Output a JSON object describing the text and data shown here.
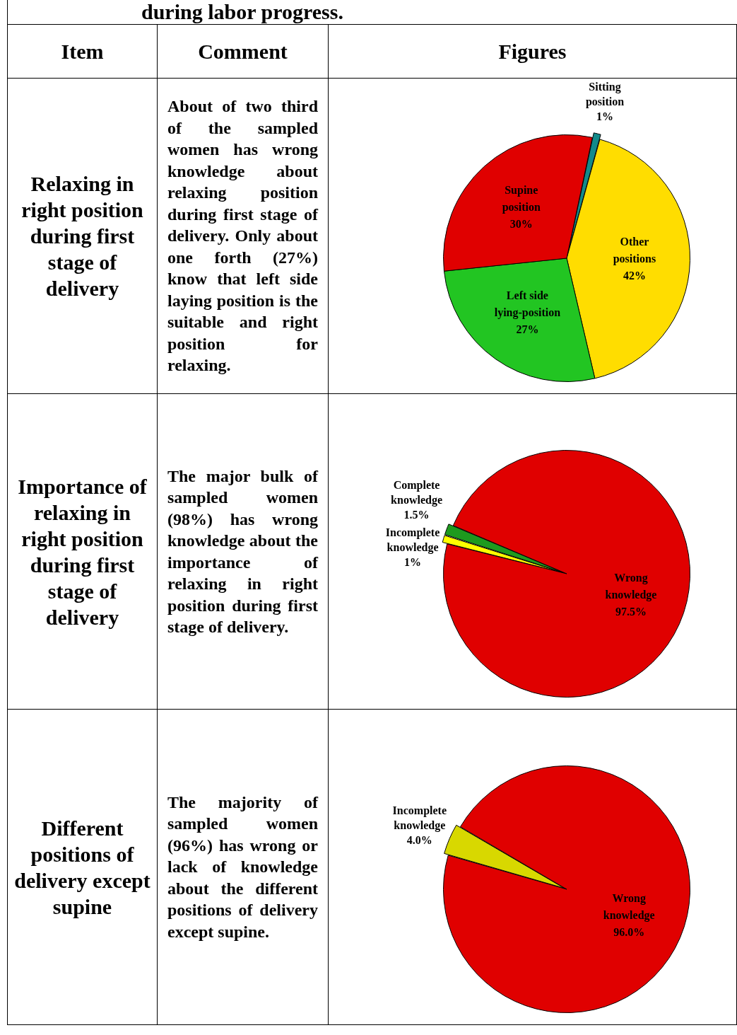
{
  "chart_data": [
    {
      "type": "other",
      "title": "during labor progress.",
      "annotations": [
        "Item",
        "Comment",
        "Figures"
      ]
    },
    {
      "type": "other",
      "annotations": [
        "Relaxing in right position during first stage of delivery",
        "About of two third of the sampled women has wrong knowledge about relaxing position during first stage of delivery. Only about one forth (27%) know that left side laying position is the suitable and right position for relaxing."
      ]
    },
    {
      "type": "pie",
      "categories": [
        "Sitting position",
        "Other positions",
        "Left side lying-position",
        "Supine position"
      ],
      "values": [
        1,
        42,
        27,
        30
      ],
      "colors": [
        "#138a8a",
        "#ffdd00",
        "#22c522",
        "#e00000"
      ],
      "value_labels": [
        "1%",
        "42%",
        "27%",
        "30%"
      ]
    },
    {
      "type": "other",
      "annotations": [
        "Importance of relaxing in right position during first stage of delivery",
        "The major bulk of sampled women (98%) has wrong knowledge about the importance of relaxing in right position during first stage of delivery."
      ]
    },
    {
      "type": "pie",
      "categories": [
        "Incomplete knowledge",
        "Complete knowledge",
        "Wrong knowledge"
      ],
      "values": [
        1,
        1.5,
        97.5
      ],
      "colors": [
        "#ffff00",
        "#1e9a1e",
        "#e00000"
      ],
      "value_labels": [
        "1%",
        "1.5%",
        "97.5%"
      ]
    },
    {
      "type": "other",
      "annotations": [
        "Different positions of delivery except supine",
        "The majority of sampled women (96%) has wrong or lack of knowledge about the different positions of delivery except supine."
      ]
    },
    {
      "type": "pie",
      "categories": [
        "Incomplete knowledge",
        "Wrong knowledge"
      ],
      "values": [
        4.0,
        96.0
      ],
      "colors": [
        "#d8d800",
        "#e00000"
      ],
      "value_labels": [
        "4.0%",
        "96.0%"
      ]
    }
  ]
}
